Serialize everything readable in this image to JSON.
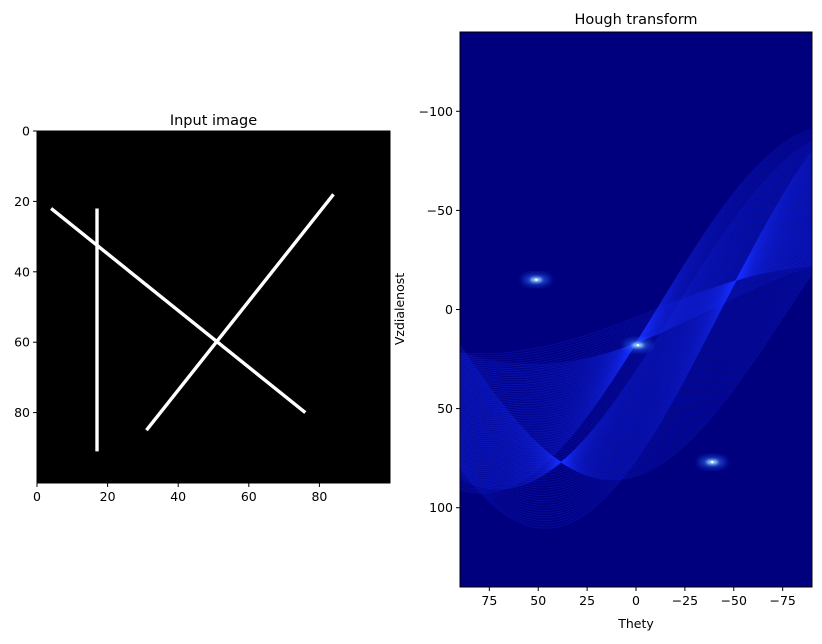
{
  "chart_data": [
    {
      "type": "heatmap",
      "title": "Input image",
      "xlabel": "",
      "ylabel": "",
      "xlim": [
        0,
        100
      ],
      "ylim": [
        100,
        0
      ],
      "xticks": [
        0,
        20,
        40,
        60,
        80
      ],
      "yticks": [
        0,
        20,
        40,
        60,
        80
      ],
      "background_color": "#000000",
      "foreground_color": "#ffffff",
      "segments": [
        {
          "x1": 17,
          "y1": 22,
          "x2": 17,
          "y2": 91
        },
        {
          "x1": 4,
          "y1": 22,
          "x2": 76,
          "y2": 80
        },
        {
          "x1": 31,
          "y1": 85,
          "x2": 84,
          "y2": 18
        }
      ]
    },
    {
      "type": "heatmap",
      "title": "Hough transform",
      "xlabel": "Thety",
      "ylabel": "Vzdialenost",
      "xlim": [
        90,
        -90
      ],
      "ylim": [
        140,
        -140
      ],
      "xticks": [
        75,
        50,
        25,
        0,
        -25,
        -50,
        -75
      ],
      "xtick_labels": [
        "75",
        "50",
        "25",
        "0",
        "−25",
        "−50",
        "−75"
      ],
      "yticks": [
        -100,
        -50,
        0,
        50,
        100
      ],
      "ytick_labels": [
        "−100",
        "−50",
        "0",
        "50",
        "100"
      ],
      "colormap": "jet",
      "background_color": "#00007f",
      "sinusoid_color": "#1a32ff",
      "peak_color": "#b4f0ff",
      "peaks": [
        {
          "theta": 51,
          "rho": -15
        },
        {
          "theta": -1,
          "rho": 18
        },
        {
          "theta": -39,
          "rho": 77
        }
      ]
    }
  ]
}
